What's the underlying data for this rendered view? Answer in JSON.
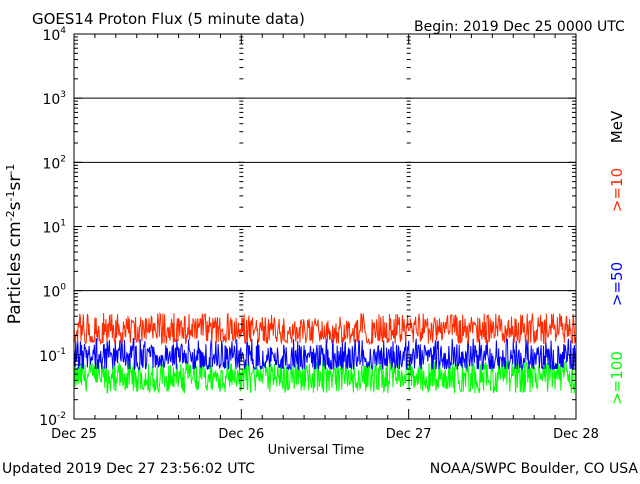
{
  "header": {
    "title": "GOES14 Proton Flux (5 minute data)",
    "begin": "Begin: 2019 Dec 25 0000 UTC"
  },
  "footer": {
    "updated": "Updated 2019 Dec 27 23:56:02 UTC",
    "credit": "NOAA/SWPC Boulder, CO USA"
  },
  "colors": {
    "ge10": "#ff2a00",
    "ge50": "#0000ff",
    "ge100": "#00ff00",
    "axis": "#000000",
    "background": "#ffffff"
  },
  "chart_data": {
    "type": "line",
    "title": "GOES14 Proton Flux (5 minute data)",
    "xlabel": "Universal Time",
    "ylabel": "Particles cm⁻²s⁻¹sr⁻¹",
    "yscale": "log",
    "ylim": [
      0.01,
      10000
    ],
    "xlim_days": [
      0,
      3
    ],
    "x_ticks": [
      "Dec 25",
      "Dec 26",
      "Dec 27",
      "Dec 28"
    ],
    "y_ticks": [
      {
        "value": 0.01,
        "base": "10",
        "exp": "-2"
      },
      {
        "value": 0.1,
        "base": "10",
        "exp": "-1"
      },
      {
        "value": 1,
        "base": "10",
        "exp": "0"
      },
      {
        "value": 10,
        "base": "10",
        "exp": "1"
      },
      {
        "value": 100,
        "base": "10",
        "exp": "2"
      },
      {
        "value": 1000,
        "base": "10",
        "exp": "3"
      },
      {
        "value": 10000,
        "base": "10",
        "exp": "4"
      }
    ],
    "threshold_lines": [
      {
        "value": 10,
        "style": "dashed"
      },
      {
        "value": 100,
        "style": "solid"
      },
      {
        "value": 1000,
        "style": "solid"
      },
      {
        "value": 1,
        "style": "solid"
      }
    ],
    "unit_label": "MeV",
    "series": [
      {
        "name": ">=10",
        "color": "#ff2a00",
        "typical_range": [
          0.15,
          0.45
        ],
        "median": 0.24
      },
      {
        "name": ">=50",
        "color": "#0000ff",
        "typical_range": [
          0.06,
          0.18
        ],
        "median": 0.09
      },
      {
        "name": ">=100",
        "color": "#00ff00",
        "typical_range": [
          0.025,
          0.08
        ],
        "median": 0.045
      }
    ],
    "grid": false,
    "legend": "right-vertical"
  }
}
